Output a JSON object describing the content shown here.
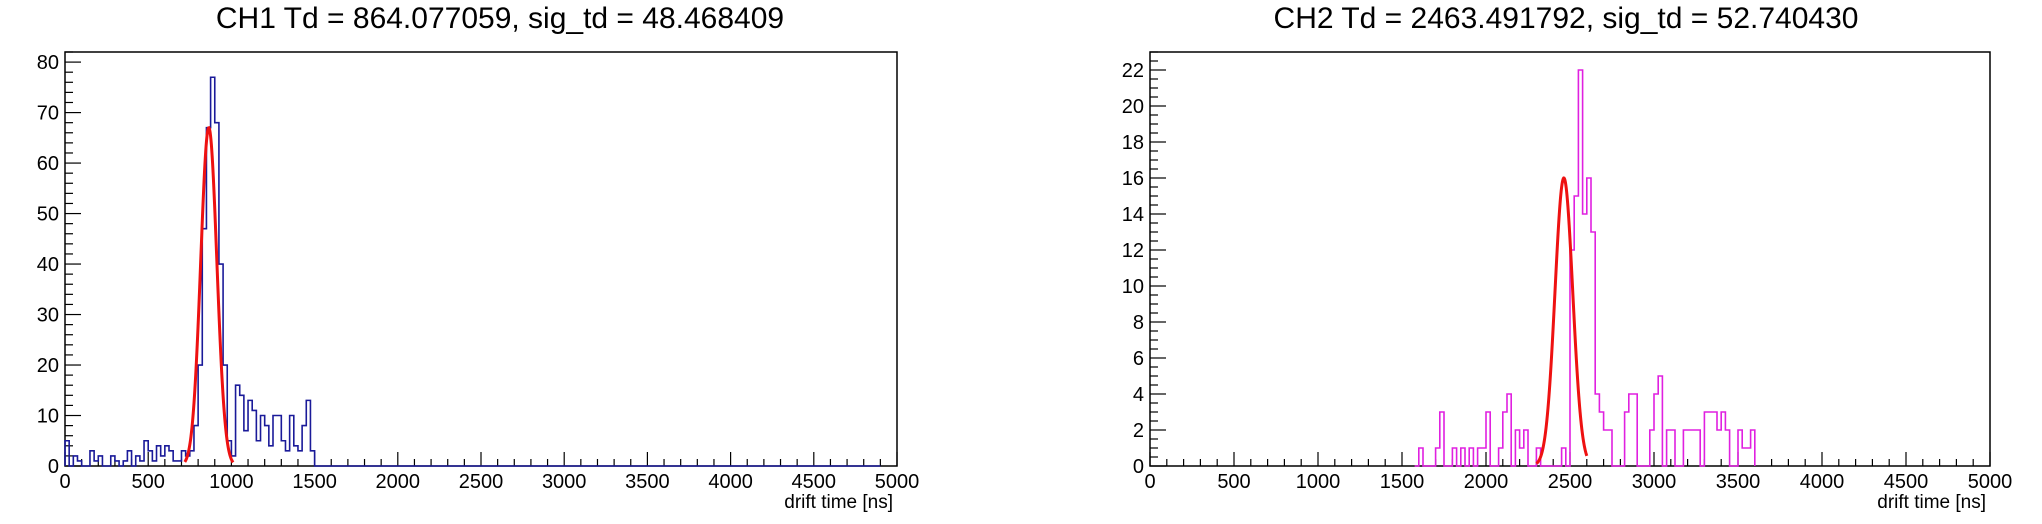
{
  "charts": [
    {
      "title": "CH1 Td = 864.077059, sig_td = 48.468409",
      "chart_data": {
        "type": "histogram",
        "xlabel": "drift time [ns]",
        "ylabel": "",
        "xlim": [
          0,
          5000
        ],
        "ylim": [
          0,
          82
        ],
        "xticks": [
          0,
          500,
          1000,
          1500,
          2000,
          2500,
          3000,
          3500,
          4000,
          4500,
          5000
        ],
        "yticks": [
          0,
          10,
          20,
          30,
          40,
          50,
          60,
          70,
          80
        ],
        "bin_width": 25,
        "grid": false,
        "series": [
          {
            "color": "#1a1a99",
            "bins_start": 0,
            "values": [
              5,
              0,
              2,
              1,
              0,
              0,
              3,
              1,
              2,
              0,
              0,
              2,
              1,
              0,
              1,
              3,
              0,
              2,
              1,
              5,
              3,
              1,
              4,
              2,
              4,
              3,
              1,
              1,
              3,
              2,
              3,
              8,
              20,
              47,
              67,
              77,
              68,
              40,
              20,
              5,
              2,
              16,
              14,
              7,
              13,
              11,
              5,
              10,
              8,
              4,
              10,
              10,
              5,
              3,
              10,
              4,
              3,
              8,
              13,
              3,
              0,
              0,
              0,
              0,
              0,
              0,
              0,
              0,
              0,
              0,
              0,
              0,
              0,
              0,
              0,
              0,
              0,
              0,
              0,
              0,
              0,
              0,
              0,
              0,
              0,
              0,
              0,
              0,
              0,
              0,
              0,
              0,
              0,
              0,
              0,
              0,
              0,
              0,
              0,
              0,
              0,
              0,
              0,
              0,
              0,
              0,
              0,
              0,
              0,
              0,
              0,
              0,
              0,
              0,
              0,
              0,
              0,
              0,
              0,
              0,
              0,
              0,
              0,
              0,
              0,
              0,
              0,
              0,
              0,
              0,
              0,
              0,
              0,
              0,
              0,
              0,
              0,
              0,
              0,
              0,
              0,
              0,
              0,
              0,
              0,
              0,
              0,
              0,
              0,
              0,
              0,
              0,
              0,
              0,
              0,
              0,
              0,
              0,
              0,
              0,
              0,
              0,
              0,
              0,
              0,
              0,
              0,
              0,
              0,
              0,
              0,
              0,
              0,
              0,
              0,
              0,
              0,
              0,
              0,
              0,
              0,
              0,
              0,
              0,
              0,
              0,
              0,
              0,
              0,
              0,
              0,
              0,
              0,
              0,
              0,
              0
            ]
          }
        ],
        "fit": {
          "color": "#ee1111",
          "amplitude": 67,
          "mean": 864.077059,
          "sigma": 48.468409,
          "range": [
            720,
            1010
          ]
        }
      }
    },
    {
      "title": "CH2 Td = 2463.491792, sig_td = 52.740430",
      "chart_data": {
        "type": "histogram",
        "xlabel": "drift time [ns]",
        "ylabel": "",
        "xlim": [
          0,
          5000
        ],
        "ylim": [
          0,
          23
        ],
        "xticks": [
          0,
          500,
          1000,
          1500,
          2000,
          2500,
          3000,
          3500,
          4000,
          4500,
          5000
        ],
        "yticks": [
          0,
          2,
          4,
          6,
          8,
          10,
          12,
          14,
          16,
          18,
          20,
          22
        ],
        "bin_width": 25,
        "grid": false,
        "series": [
          {
            "color": "#e020e0",
            "bins_start": 1575,
            "values": [
              0,
              1,
              0,
              0,
              0,
              1,
              3,
              0,
              0,
              1,
              0,
              1,
              0,
              1,
              0,
              1,
              1,
              3,
              0,
              0,
              1,
              3,
              4,
              0,
              2,
              1,
              2,
              0,
              0,
              1,
              0,
              0,
              0,
              0,
              0,
              1,
              0,
              12,
              15,
              22,
              14,
              16,
              13,
              4,
              3,
              2,
              2,
              0,
              0,
              0,
              3,
              4,
              4,
              0,
              0,
              0,
              2,
              4,
              5,
              0,
              2,
              2,
              0,
              0,
              2,
              2,
              2,
              2,
              0,
              3,
              3,
              3,
              2,
              3,
              2,
              0,
              0,
              2,
              1,
              1,
              2
            ]
          }
        ],
        "fit": {
          "color": "#ee1111",
          "amplitude": 16,
          "mean": 2463.491792,
          "sigma": 52.74043,
          "range": [
            2300,
            2600
          ]
        }
      }
    }
  ]
}
